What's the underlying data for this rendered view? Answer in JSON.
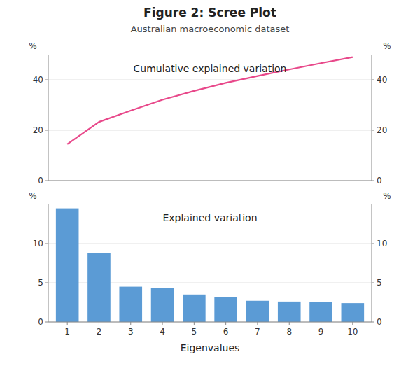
{
  "chart_data": [
    {
      "type": "line",
      "title": "Figure 2: Scree Plot",
      "subtitle": "Australian macroeconomic dataset",
      "annotations": [
        "Cumulative explained variation"
      ],
      "x": [
        1,
        2,
        3,
        4,
        5,
        6,
        7,
        8,
        9,
        10
      ],
      "values": [
        14.5,
        23.3,
        27.8,
        32.1,
        35.6,
        38.8,
        41.5,
        44.1,
        46.6,
        49.0
      ],
      "color": "#e8488a",
      "xlim": [
        0.4,
        10.6
      ],
      "ylim": [
        0,
        50
      ],
      "yticks": [
        0,
        20,
        40
      ],
      "y2lim": [
        0,
        50
      ],
      "y2ticks": [
        0,
        20,
        40
      ],
      "ylabel": "%",
      "y2label": "%",
      "grid": true,
      "tick_labels": "y"
    },
    {
      "type": "bar",
      "annotations": [
        "Explained variation"
      ],
      "x": [
        1,
        2,
        3,
        4,
        5,
        6,
        7,
        8,
        9,
        10
      ],
      "values": [
        14.5,
        8.8,
        4.5,
        4.3,
        3.5,
        3.2,
        2.7,
        2.6,
        2.5,
        2.4
      ],
      "color": "#5b9bd5",
      "xlim": [
        0.4,
        10.6
      ],
      "xticks": [
        1,
        2,
        3,
        4,
        5,
        6,
        7,
        8,
        9,
        10
      ],
      "ylim": [
        0,
        15
      ],
      "yticks": [
        0,
        5,
        10
      ],
      "y2lim": [
        0,
        15
      ],
      "y2ticks": [
        0,
        5,
        10
      ],
      "ylabel": "%",
      "y2label": "%",
      "xlabel": "Eigenvalues",
      "grid": true
    }
  ]
}
